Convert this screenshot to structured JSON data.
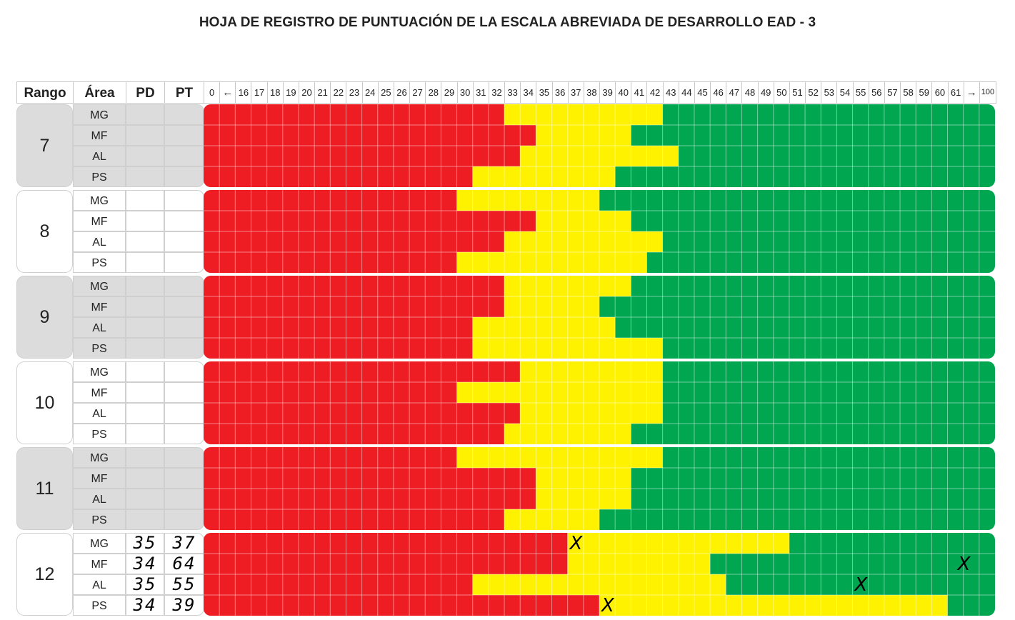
{
  "title": "HOJA DE REGISTRO DE PUNTUACIÓN DE LA ESCALA ABREVIADA DE DESARROLLO EAD - 3",
  "headers": {
    "rango": "Rango",
    "area": "Área",
    "pd": "PD",
    "pt": "PT"
  },
  "scale_labels": [
    "0",
    "←",
    "16",
    "17",
    "18",
    "19",
    "20",
    "21",
    "22",
    "23",
    "24",
    "25",
    "26",
    "27",
    "28",
    "29",
    "30",
    "31",
    "32",
    "33",
    "34",
    "35",
    "36",
    "37",
    "38",
    "39",
    "40",
    "41",
    "42",
    "43",
    "44",
    "45",
    "46",
    "47",
    "48",
    "49",
    "50",
    "51",
    "52",
    "53",
    "54",
    "55",
    "56",
    "57",
    "58",
    "59",
    "60",
    "61",
    "→",
    "100"
  ],
  "colors": {
    "red": "#ee1d23",
    "yellow": "#fff200",
    "green": "#00a650",
    "grid_line": "#ffffff",
    "grey": "#dcdcdc"
  },
  "ranges": [
    {
      "rango": "7",
      "shade": "grey",
      "rows": [
        {
          "area": "MG",
          "pd": "",
          "pt": "",
          "red_end": 32,
          "yellow_end": 42
        },
        {
          "area": "MF",
          "pd": "",
          "pt": "",
          "red_end": 34,
          "yellow_end": 40
        },
        {
          "area": "AL",
          "pd": "",
          "pt": "",
          "red_end": 33,
          "yellow_end": 43
        },
        {
          "area": "PS",
          "pd": "",
          "pt": "",
          "red_end": 30,
          "yellow_end": 39
        }
      ]
    },
    {
      "rango": "8",
      "shade": "white",
      "rows": [
        {
          "area": "MG",
          "pd": "",
          "pt": "",
          "red_end": 29,
          "yellow_end": 38
        },
        {
          "area": "MF",
          "pd": "",
          "pt": "",
          "red_end": 34,
          "yellow_end": 40
        },
        {
          "area": "AL",
          "pd": "",
          "pt": "",
          "red_end": 32,
          "yellow_end": 42
        },
        {
          "area": "PS",
          "pd": "",
          "pt": "",
          "red_end": 29,
          "yellow_end": 41
        }
      ]
    },
    {
      "rango": "9",
      "shade": "grey",
      "rows": [
        {
          "area": "MG",
          "pd": "",
          "pt": "",
          "red_end": 32,
          "yellow_end": 40
        },
        {
          "area": "MF",
          "pd": "",
          "pt": "",
          "red_end": 32,
          "yellow_end": 38
        },
        {
          "area": "AL",
          "pd": "",
          "pt": "",
          "red_end": 30,
          "yellow_end": 39
        },
        {
          "area": "PS",
          "pd": "",
          "pt": "",
          "red_end": 30,
          "yellow_end": 42
        }
      ]
    },
    {
      "rango": "10",
      "shade": "white",
      "rows": [
        {
          "area": "MG",
          "pd": "",
          "pt": "",
          "red_end": 33,
          "yellow_end": 42
        },
        {
          "area": "MF",
          "pd": "",
          "pt": "",
          "red_end": 29,
          "yellow_end": 42
        },
        {
          "area": "AL",
          "pd": "",
          "pt": "",
          "red_end": 33,
          "yellow_end": 42
        },
        {
          "area": "PS",
          "pd": "",
          "pt": "",
          "red_end": 32,
          "yellow_end": 40
        }
      ]
    },
    {
      "rango": "11",
      "shade": "grey",
      "rows": [
        {
          "area": "MG",
          "pd": "",
          "pt": "",
          "red_end": 29,
          "yellow_end": 42
        },
        {
          "area": "MF",
          "pd": "",
          "pt": "",
          "red_end": 34,
          "yellow_end": 40
        },
        {
          "area": "AL",
          "pd": "",
          "pt": "",
          "red_end": 34,
          "yellow_end": 40
        },
        {
          "area": "PS",
          "pd": "",
          "pt": "",
          "red_end": 32,
          "yellow_end": 38
        }
      ]
    },
    {
      "rango": "12",
      "shade": "white",
      "rows": [
        {
          "area": "MG",
          "pd": "35",
          "pt": "37",
          "red_end": 36,
          "yellow_end": 50,
          "mark": "X",
          "mark_at": 37
        },
        {
          "area": "MF",
          "pd": "34",
          "pt": "64",
          "red_end": 36,
          "yellow_end": 45,
          "mark": "X",
          "mark_at": 61.5
        },
        {
          "area": "AL",
          "pd": "35",
          "pt": "55",
          "red_end": 30,
          "yellow_end": 46,
          "mark": "X",
          "mark_at": 55
        },
        {
          "area": "PS",
          "pd": "34",
          "pt": "39",
          "red_end": 38,
          "yellow_end": 60,
          "mark": "X",
          "mark_at": 39
        }
      ]
    }
  ]
}
